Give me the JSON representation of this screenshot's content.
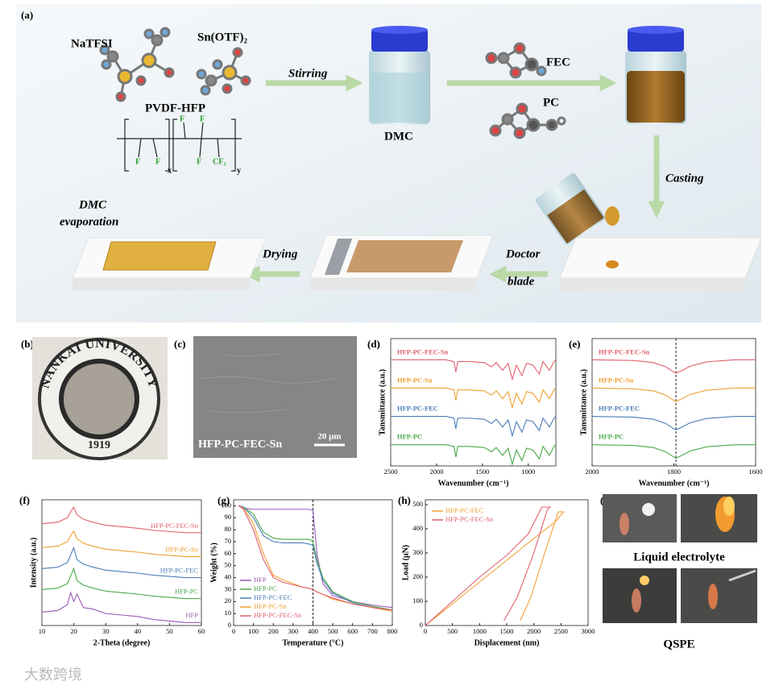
{
  "panel_a": {
    "label": "(a)",
    "reagents": [
      "NaTFSI",
      "Sn(OTF)₂",
      "PVDF-HFP"
    ],
    "polymer_labels": [
      "F",
      "F",
      "F",
      "F",
      "F",
      "CF₃",
      "x",
      "y"
    ],
    "stirring": "Stirring",
    "dmc": "DMC",
    "fec": "FEC",
    "pc": "PC",
    "casting": "Casting",
    "doctor_blade": [
      "Doctor",
      "blade"
    ],
    "drying": "Drying",
    "dmc_evaporation": [
      "DMC",
      "evaporation"
    ]
  },
  "panel_b": {
    "label": "(b)",
    "seal_text": "NANKAI UNIVERSITY",
    "year": "1919"
  },
  "panel_c": {
    "label": "(c)",
    "sample": "HFP-PC-FEC-Sn",
    "scale": "20 μm"
  },
  "panel_i": {
    "label": "(i)",
    "top_caption": "Liquid electrolyte",
    "bottom_caption": "QSPE"
  },
  "panel_labels": [
    "(d)",
    "(e)",
    "(f)",
    "(g)",
    "(h)"
  ],
  "watermark": "大数跨境",
  "chart_data": [
    {
      "type": "line",
      "xlabel": "Wavenumber (cm⁻¹)",
      "ylabel": "Tansmittance (a.u.)",
      "xlim": [
        2500,
        700
      ],
      "xticks": [
        2500,
        2000,
        1500,
        1000
      ],
      "ylim": [
        0,
        3.6
      ],
      "legend": "left",
      "x": [
        2500,
        1900,
        1810,
        1790,
        1770,
        1650,
        1480,
        1400,
        1350,
        1280,
        1220,
        1175,
        1130,
        1070,
        1020,
        950,
        880,
        840,
        770,
        720,
        700
      ],
      "series": [
        {
          "name": "HFP-PC-FEC-Sn",
          "color": "#e0606e",
          "values": [
            3.0,
            3.0,
            2.95,
            2.65,
            2.95,
            2.95,
            2.92,
            2.8,
            2.92,
            2.7,
            2.9,
            2.45,
            2.85,
            2.55,
            2.9,
            2.85,
            2.6,
            2.95,
            2.7,
            2.95,
            3.0
          ]
        },
        {
          "name": "HFP-PC-Sn",
          "color": "#f0a030",
          "values": [
            2.2,
            2.2,
            2.15,
            1.85,
            2.15,
            2.15,
            2.12,
            2.0,
            2.12,
            1.9,
            2.1,
            1.65,
            2.05,
            1.75,
            2.1,
            2.05,
            1.8,
            2.15,
            1.9,
            2.15,
            2.2
          ]
        },
        {
          "name": "HFP-PC-FEC",
          "color": "#4a7db5",
          "values": [
            1.4,
            1.4,
            1.35,
            1.05,
            1.35,
            1.35,
            1.32,
            1.2,
            1.32,
            1.1,
            1.3,
            0.85,
            1.25,
            0.95,
            1.3,
            1.25,
            1.0,
            1.35,
            1.1,
            1.35,
            1.4
          ]
        },
        {
          "name": "HFP-PC",
          "color": "#4aa84a",
          "values": [
            0.6,
            0.6,
            0.55,
            0.25,
            0.55,
            0.55,
            0.52,
            0.4,
            0.52,
            0.3,
            0.5,
            0.05,
            0.45,
            0.15,
            0.5,
            0.45,
            0.2,
            0.55,
            0.3,
            0.55,
            0.6
          ]
        }
      ]
    },
    {
      "type": "line",
      "xlabel": "Wavenumber (cm⁻¹)",
      "ylabel": "Tansmittance (a.u.)",
      "xlim": [
        2000,
        1600
      ],
      "xticks": [
        2000,
        1800,
        1600
      ],
      "ylim": [
        0,
        3.6
      ],
      "legend": "left",
      "vline": 1795,
      "x": [
        2000,
        1900,
        1850,
        1820,
        1800,
        1795,
        1785,
        1760,
        1720,
        1650,
        1600
      ],
      "series": [
        {
          "name": "HFP-PC-FEC-Sn",
          "color": "#e0606e",
          "values": [
            3.0,
            2.98,
            2.92,
            2.8,
            2.65,
            2.62,
            2.67,
            2.82,
            2.94,
            3.0,
            3.0
          ]
        },
        {
          "name": "HFP-PC-Sn",
          "color": "#f0a030",
          "values": [
            2.2,
            2.18,
            2.12,
            2.0,
            1.85,
            1.82,
            1.87,
            2.02,
            2.14,
            2.2,
            2.2
          ]
        },
        {
          "name": "HFP-PC-FEC",
          "color": "#4a7db5",
          "values": [
            1.4,
            1.38,
            1.32,
            1.2,
            1.05,
            1.02,
            1.07,
            1.22,
            1.34,
            1.4,
            1.4
          ]
        },
        {
          "name": "HFP-PC",
          "color": "#4aa84a",
          "values": [
            0.6,
            0.58,
            0.52,
            0.4,
            0.25,
            0.22,
            0.27,
            0.42,
            0.54,
            0.6,
            0.6
          ]
        }
      ]
    },
    {
      "type": "line",
      "xlabel": "2-Theta (degree)",
      "ylabel": "Intensity (a.u.)",
      "xlim": [
        10,
        60
      ],
      "xticks": [
        10,
        20,
        30,
        40,
        50,
        60
      ],
      "ylim": [
        0,
        4.2
      ],
      "legend": "right",
      "x": [
        10,
        15,
        18,
        19,
        20,
        21,
        23,
        26,
        30,
        35,
        40,
        45,
        50,
        55,
        60
      ],
      "series": [
        {
          "name": "HFP-PC-FEC-Sn",
          "color": "#e0606e",
          "values": [
            3.4,
            3.45,
            3.6,
            3.8,
            3.95,
            3.7,
            3.55,
            3.45,
            3.35,
            3.3,
            3.25,
            3.18,
            3.14,
            3.1,
            3.1
          ]
        },
        {
          "name": "HFP-PC-Sn",
          "color": "#f0a030",
          "values": [
            2.6,
            2.65,
            2.8,
            3.0,
            3.15,
            2.9,
            2.75,
            2.65,
            2.55,
            2.5,
            2.45,
            2.38,
            2.34,
            2.3,
            2.3
          ]
        },
        {
          "name": "HFP-PC-FEC",
          "color": "#4a7db5",
          "values": [
            1.9,
            1.95,
            2.1,
            2.35,
            2.6,
            2.2,
            2.05,
            1.95,
            1.85,
            1.8,
            1.75,
            1.68,
            1.64,
            1.6,
            1.6
          ]
        },
        {
          "name": "HFP-PC",
          "color": "#4aa84a",
          "values": [
            1.2,
            1.25,
            1.4,
            1.65,
            1.9,
            1.5,
            1.35,
            1.25,
            1.15,
            1.1,
            1.05,
            0.98,
            0.94,
            0.9,
            0.9
          ]
        },
        {
          "name": "HFP",
          "color": "#9b59b6",
          "values": [
            0.45,
            0.5,
            0.7,
            1.1,
            0.8,
            1.05,
            0.6,
            0.55,
            0.4,
            0.35,
            0.3,
            0.2,
            0.15,
            0.1,
            0.1
          ]
        }
      ]
    },
    {
      "type": "line",
      "xlabel": "Temperature (°C)",
      "ylabel": "Weight (%)",
      "xlim": [
        0,
        800
      ],
      "xticks": [
        0,
        100,
        200,
        300,
        400,
        500,
        600,
        700,
        800
      ],
      "ylim": [
        0,
        105
      ],
      "yticks": [
        0,
        10,
        20,
        30,
        40,
        50,
        60,
        70,
        80,
        90,
        100
      ],
      "legend": "lower left",
      "vline": 400,
      "x": [
        25,
        50,
        100,
        150,
        200,
        250,
        300,
        350,
        380,
        400,
        420,
        450,
        500,
        600,
        700,
        800
      ],
      "series": [
        {
          "name": "HFP",
          "color": "#9b59b6",
          "values": [
            100,
            98,
            97,
            97,
            97,
            97,
            97,
            97,
            97,
            96,
            60,
            35,
            25,
            20,
            17,
            15
          ]
        },
        {
          "name": "HFP-PC",
          "color": "#4aa84a",
          "values": [
            100,
            99,
            93,
            78,
            73,
            72,
            72,
            72,
            72,
            70,
            55,
            40,
            28,
            20,
            16,
            13
          ]
        },
        {
          "name": "HFP-PC-FEC",
          "color": "#4a7db5",
          "values": [
            100,
            99,
            90,
            75,
            70,
            69,
            69,
            69,
            68,
            67,
            52,
            38,
            27,
            19,
            15,
            12
          ]
        },
        {
          "name": "HFP-PC-Sn",
          "color": "#f0a030",
          "values": [
            100,
            98,
            85,
            60,
            42,
            38,
            35,
            32,
            31,
            30,
            28,
            26,
            22,
            18,
            15,
            12
          ]
        },
        {
          "name": "HFP-PC-FEC-Sn",
          "color": "#e0606e",
          "values": [
            100,
            97,
            80,
            55,
            40,
            36,
            34,
            32,
            31,
            30,
            28,
            26,
            23,
            18,
            15,
            13
          ]
        }
      ]
    },
    {
      "type": "line",
      "xlabel": "Displacement (nm)",
      "ylabel": "Load (μN)",
      "xlim": [
        0,
        3000
      ],
      "xticks": [
        0,
        500,
        1000,
        1500,
        2000,
        2500,
        3000
      ],
      "ylim": [
        0,
        520
      ],
      "yticks": [
        0,
        100,
        200,
        300,
        400,
        500
      ],
      "legend": "upper left",
      "series": [
        {
          "name": "HFP-PC-FEC",
          "color": "#f0a030",
          "x": [
            0,
            500,
            1000,
            1500,
            2000,
            2400,
            2550,
            2450,
            2200,
            1950,
            1750
          ],
          "values": [
            0,
            90,
            180,
            270,
            360,
            430,
            470,
            470,
            300,
            120,
            20
          ]
        },
        {
          "name": "HFP-PC-FEC-Sn",
          "color": "#e0606e",
          "x": [
            0,
            500,
            1000,
            1500,
            1900,
            2150,
            2300,
            2250,
            2000,
            1700,
            1450
          ],
          "values": [
            0,
            100,
            200,
            290,
            380,
            490,
            490,
            480,
            300,
            120,
            20
          ]
        }
      ]
    }
  ]
}
